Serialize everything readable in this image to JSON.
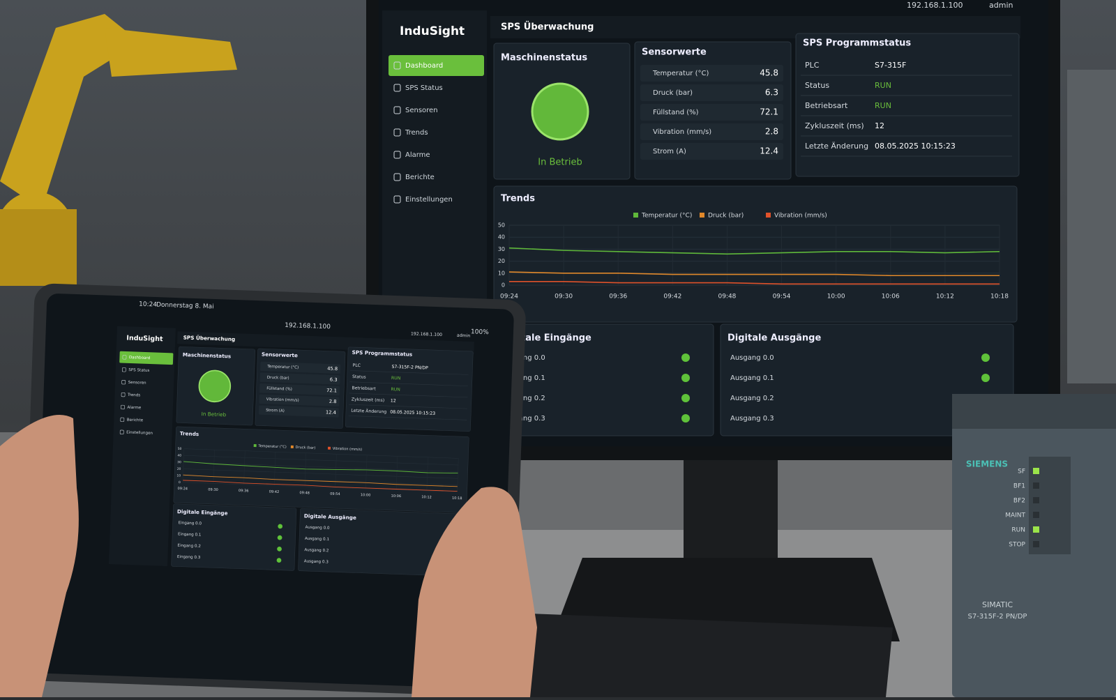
{
  "header": {
    "ip": "192.168.1.100",
    "user": "admin"
  },
  "app": {
    "logo": "InduSight",
    "page_title": "SPS Überwachung"
  },
  "nav": [
    "Dashboard",
    "SPS Status",
    "Sensoren",
    "Trends",
    "Alarme",
    "Berichte",
    "Einstellungen"
  ],
  "machine": {
    "title": "Maschinenstatus",
    "state": "In Betrieb"
  },
  "sensors": {
    "title": "Sensorwerte",
    "rows": [
      {
        "label": "Temperatur (°C)",
        "value": 45.8
      },
      {
        "label": "Druck (bar)",
        "value": 6.3
      },
      {
        "label": "Füllstand (%)",
        "value": 72.1
      },
      {
        "label": "Vibration (mm/s)",
        "value": 2.8
      },
      {
        "label": "Strom (A)",
        "value": 12.4
      }
    ]
  },
  "program": {
    "title": "SPS Programmstatus",
    "rows": [
      {
        "label": "PLC",
        "value": "S7-315F"
      },
      {
        "label": "Status",
        "value": "RUN"
      },
      {
        "label": "Betriebsart",
        "value": "RUN"
      },
      {
        "label": "Zykluszeit (ms)",
        "value": 12
      },
      {
        "label": "Letzte Änderung",
        "value": "08.05.2025 10:15:23"
      }
    ]
  },
  "chart_data": {
    "type": "line",
    "title": "Trends",
    "x": [
      "09:24",
      "09:30",
      "09:36",
      "09:42",
      "09:48",
      "09:54",
      "10:00",
      "10:06",
      "10:12",
      "10:18"
    ],
    "series": [
      {
        "name": "Temperatur (°C)",
        "color": "#5fb83a",
        "values": [
          31,
          29,
          28,
          27,
          26,
          27,
          28,
          28,
          27,
          28
        ]
      },
      {
        "name": "Druck (bar)",
        "color": "#e0882a",
        "values": [
          11,
          10,
          10,
          9,
          9,
          9,
          9,
          8,
          8,
          8
        ]
      },
      {
        "name": "Vibration (mm/s)",
        "color": "#e0522a",
        "values": [
          3,
          3,
          2,
          2,
          2,
          1,
          1,
          1,
          1,
          1
        ]
      }
    ],
    "ylim": [
      0,
      50
    ],
    "yticks": [
      0,
      10,
      20,
      30,
      40,
      50
    ],
    "grid": true,
    "legend": "top"
  },
  "inputs": {
    "title": "Digitale Eingänge",
    "items": [
      "Eingang 0.0",
      "Eingang 0.1",
      "Eingang 0.2",
      "Eingang 0.3"
    ]
  },
  "outputs": {
    "title": "Digitale Ausgänge",
    "items": [
      "Ausgang 0.0",
      "Ausgang 0.1",
      "Ausgang 0.2",
      "Ausgang 0.3"
    ]
  },
  "tablet": {
    "time": "10:24",
    "date": "Donnerstag 8. Mai",
    "battery": "100%",
    "plc": "S7-315F-2 PN/DP"
  },
  "device": {
    "brand": "SIEMENS",
    "leds": [
      "SF",
      "BF1",
      "BF2",
      "MAINT",
      "RUN",
      "STOP"
    ],
    "family": "SIMATIC",
    "model": "S7-315F-2 PN/DP"
  }
}
